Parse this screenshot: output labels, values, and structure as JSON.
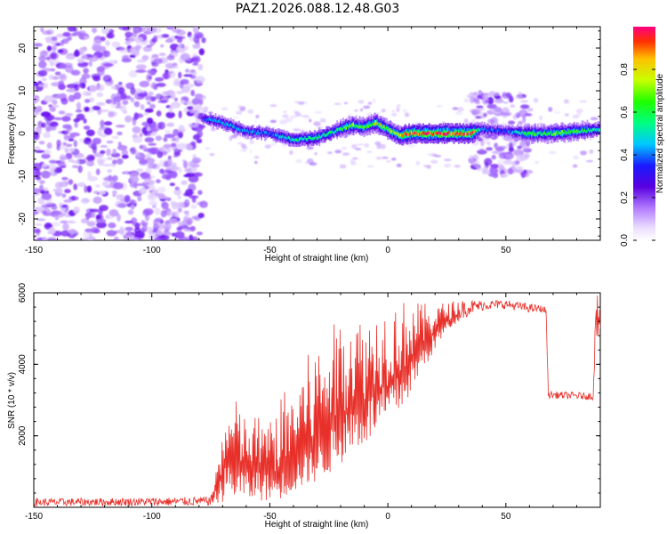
{
  "chart_data": [
    {
      "type": "heatmap",
      "title": "PAZ1.2026.088.12.48.G03",
      "xlabel": "Height of straight line (km)",
      "ylabel": "Frequency (Hz)",
      "xlim": [
        -150,
        90
      ],
      "ylim": [
        -25,
        25
      ],
      "xticks": [
        "-150",
        "-100",
        "-50",
        "0",
        "50"
      ],
      "yticks": [
        "-20",
        "-10",
        "0",
        "10",
        "20"
      ],
      "colorbar": {
        "label": "Normalized spectral amplitude",
        "range": [
          0,
          1
        ],
        "ticks": [
          "0.0",
          "0.2",
          "0.4",
          "0.6",
          "0.8"
        ]
      },
      "ridge": {
        "x": [
          -78,
          -70,
          -60,
          -50,
          -40,
          -30,
          -20,
          -15,
          -10,
          -5,
          0,
          5,
          10,
          20,
          35,
          40,
          50,
          60,
          70,
          80,
          90
        ],
        "y": [
          3.5,
          2.5,
          0.5,
          0,
          -1.5,
          -1,
          1,
          2,
          1.5,
          2.5,
          1,
          -0.5,
          0,
          0,
          0,
          1,
          0.5,
          0,
          0,
          0.5,
          1
        ],
        "amplitude": [
          0.35,
          0.45,
          0.45,
          0.4,
          0.5,
          0.55,
          0.55,
          0.7,
          0.6,
          0.75,
          0.7,
          0.85,
          0.95,
          0.95,
          0.95,
          0.4,
          0.35,
          0.6,
          0.65,
          0.6,
          0.5
        ]
      },
      "regions": [
        {
          "x": [
            -150,
            -78
          ],
          "description": "scattered low-amplitude noise (0.05-0.2)"
        },
        {
          "x": [
            35,
            60
          ],
          "description": "scattered noise cluster between about -10 and 10 Hz"
        }
      ]
    },
    {
      "type": "line",
      "xlabel": "Height of straight line (km)",
      "ylabel": "SNR (10 * v/v)",
      "xlim": [
        -150,
        90
      ],
      "ylim": [
        0,
        6000
      ],
      "xticks": [
        "-150",
        "-100",
        "-50",
        "0",
        "50"
      ],
      "yticks": [
        "2000",
        "4000",
        "6000"
      ],
      "color": "#e8302a",
      "series": [
        {
          "x": [
            -150,
            -120,
            -90,
            -75,
            -72,
            -68,
            -65,
            -62,
            -58,
            -55,
            -50,
            -45,
            -40,
            -35,
            -30,
            -25,
            -20,
            -15,
            -10,
            -5,
            0,
            5,
            10,
            15,
            20,
            25,
            30,
            35,
            40,
            45,
            50,
            55,
            60,
            65,
            67,
            68,
            70,
            75,
            80,
            85,
            87,
            88,
            90
          ],
          "y": [
            120,
            150,
            180,
            200,
            600,
            1300,
            1000,
            1100,
            900,
            1100,
            900,
            1000,
            1200,
            1500,
            1700,
            2100,
            2600,
            2900,
            3000,
            3300,
            3400,
            3700,
            4100,
            4500,
            4900,
            5200,
            5400,
            5500,
            5600,
            5650,
            5650,
            5600,
            5550,
            5550,
            5500,
            3150,
            3150,
            3100,
            3100,
            3100,
            3100,
            5500,
            5000
          ],
          "envelope": {
            "x": [
              -150,
              -120,
              -90,
              -75,
              -70,
              -65,
              -60,
              -55,
              -50,
              -45,
              -40,
              -35,
              -30,
              -25,
              -20,
              -15,
              -10,
              -5,
              0,
              5,
              10,
              15,
              20,
              25,
              30,
              35,
              40,
              45,
              50,
              55,
              60,
              65,
              67,
              68,
              87,
              88,
              90
            ],
            "lo": [
              30,
              40,
              40,
              50,
              150,
              250,
              150,
              200,
              150,
              250,
              400,
              600,
              700,
              900,
              1200,
              1500,
              1700,
              2000,
              2300,
              2600,
              3200,
              3800,
              4400,
              4900,
              5200,
              5400,
              5500,
              5550,
              5550,
              5500,
              5450,
              5450,
              5400,
              3050,
              3000,
              4500,
              4500
            ],
            "hi": [
              250,
              260,
              280,
              300,
              2200,
              3100,
              2500,
              2600,
              2400,
              3200,
              3500,
              4200,
              4600,
              5000,
              5300,
              5600,
              5200,
              5500,
              5700,
              5800,
              5800,
              5700,
              5700,
              5750,
              5800,
              5800,
              5800,
              5800,
              5800,
              5750,
              5700,
              5650,
              5600,
              3250,
              3200,
              6000,
              5900
            ]
          }
        }
      ]
    }
  ]
}
